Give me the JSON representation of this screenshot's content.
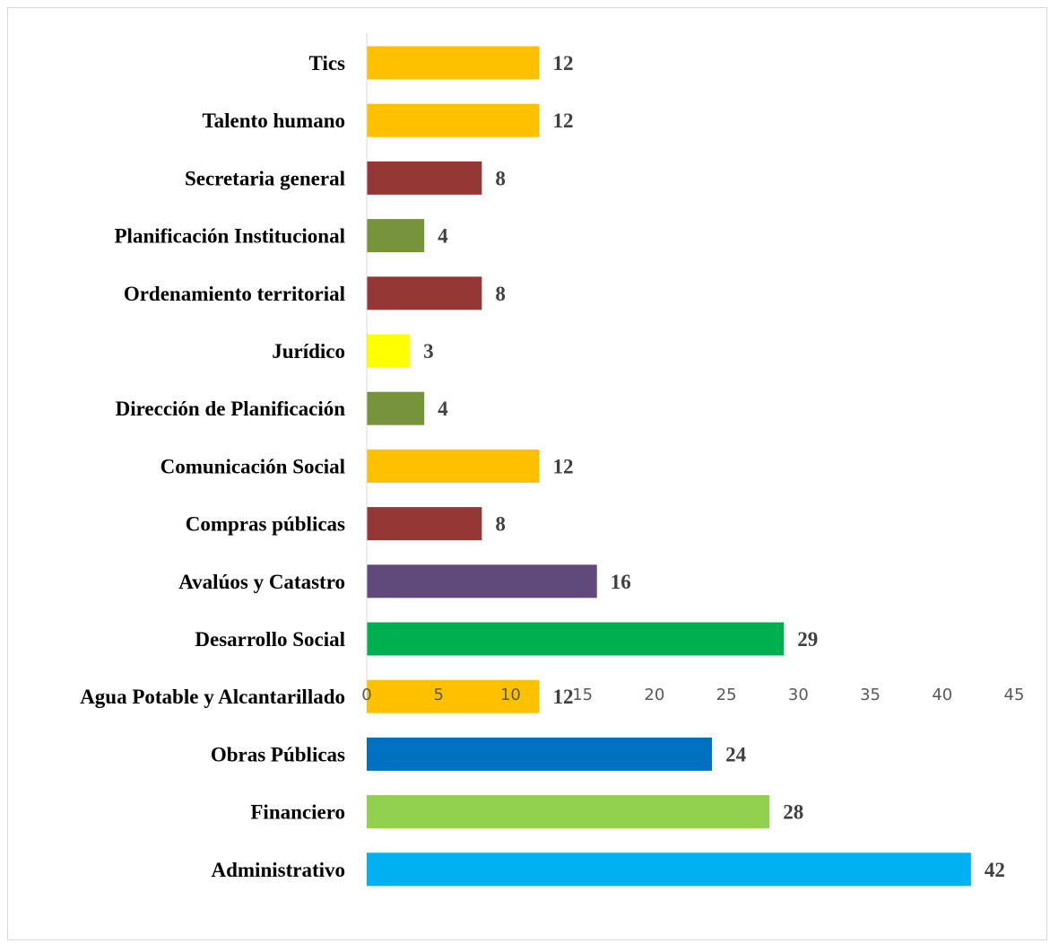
{
  "chart_data": {
    "type": "bar",
    "orientation": "horizontal",
    "title": "",
    "xlabel": "",
    "ylabel": "",
    "categories": [
      "Administrativo",
      "Financiero",
      "Obras Públicas",
      "Agua Potable y Alcantarillado",
      "Desarrollo Social",
      "Avalúos y Catastro",
      "Compras públicas",
      "Comunicación Social",
      "Dirección de Planificación",
      "Jurídico",
      "Ordenamiento territorial",
      "Planificación Institucional",
      "Secretaria general",
      "Talento humano",
      "Tics"
    ],
    "values": [
      42,
      28,
      24,
      12,
      29,
      16,
      8,
      12,
      4,
      3,
      8,
      4,
      8,
      12,
      12
    ],
    "colors": [
      "#00B0F0",
      "#92D050",
      "#0070C0",
      "#FFC000",
      "#00B050",
      "#604A7B",
      "#953735",
      "#FFC000",
      "#77933C",
      "#FFFF00",
      "#953735",
      "#77933C",
      "#953735",
      "#FFC000",
      "#FFC000"
    ],
    "xlim": [
      0,
      45
    ],
    "xticks": [
      "0",
      "5",
      "10",
      "15",
      "20",
      "25",
      "30",
      "35",
      "40",
      "45"
    ],
    "grid": false,
    "legend": "none",
    "data_labels": true
  }
}
